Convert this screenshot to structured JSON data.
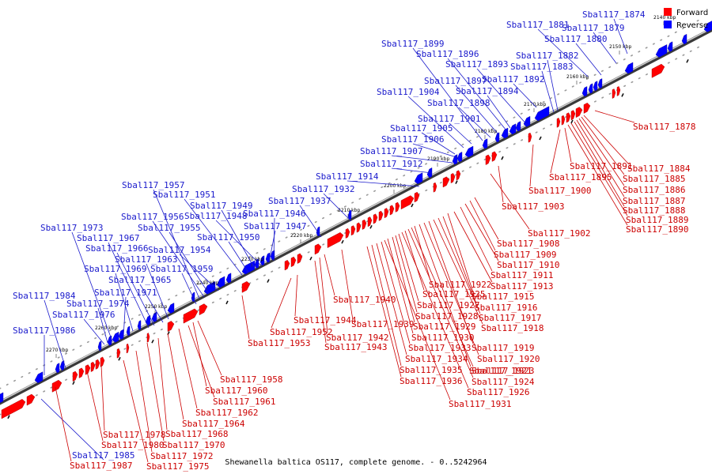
{
  "caption": "Shewanella baltica OS117, complete genome. - 0..5242964",
  "legend": {
    "forward": {
      "label": "Forward",
      "color": "#ff0000"
    },
    "reverse": {
      "label": "Reverse",
      "color": "#0000ff"
    }
  },
  "ticks": [
    "2140 kbp",
    "2150 kbp",
    "2160 kbp",
    "2170 kbp",
    "2180 kbp",
    "2190 kbp",
    "2200 kbp",
    "2210 kbp",
    "2220 kbp",
    "2230 kbp",
    "2240 kbp",
    "2250 kbp",
    "2260 kbp",
    "2270 kbp"
  ],
  "reverse_labels": [
    "Sbal117_1874",
    "Sbal117_1879",
    "Sbal117_1880",
    "Sbal117_1881",
    "Sbal117_1882",
    "Sbal117_1883",
    "Sbal117_1892",
    "Sbal117_1893",
    "Sbal117_1894",
    "Sbal117_1896",
    "Sbal117_1897",
    "Sbal117_1898",
    "Sbal117_1899",
    "Sbal117_1901",
    "Sbal117_1904",
    "Sbal117_1905",
    "Sbal117_1906",
    "Sbal117_1907",
    "Sbal117_1912",
    "Sbal117_1914",
    "Sbal117_1932",
    "Sbal117_1937",
    "Sbal117_1946",
    "Sbal117_1947",
    "Sbal117_1948",
    "Sbal117_1949",
    "Sbal117_1950",
    "Sbal117_1951",
    "Sbal117_1954",
    "Sbal117_1955",
    "Sbal117_1956",
    "Sbal117_1957",
    "Sbal117_1959",
    "Sbal117_1963",
    "Sbal117_1965",
    "Sbal117_1966",
    "Sbal117_1967",
    "Sbal117_1969",
    "Sbal117_1971",
    "Sbal117_1973",
    "Sbal117_1974",
    "Sbal117_1976",
    "Sbal117_1984",
    "Sbal117_1985",
    "Sbal117_1986"
  ],
  "forward_labels": [
    "Sbal117_1878",
    "Sbal117_1884",
    "Sbal117_1885",
    "Sbal117_1886",
    "Sbal117_1887",
    "Sbal117_1888",
    "Sbal117_1889",
    "Sbal117_1890",
    "Sbal117_1891",
    "Sbal117_1895",
    "Sbal117_1900",
    "Sbal117_1902",
    "Sbal117_1903",
    "Sbal117_1908",
    "Sbal117_1909",
    "Sbal117_1910",
    "Sbal117_1911",
    "Sbal117_1913",
    "Sbal117_1915",
    "Sbal117_1916",
    "Sbal117_1917",
    "Sbal117_1918",
    "Sbal117_1919",
    "Sbal117_1920",
    "Sbal117_1921",
    "Sbal117_1922",
    "Sbal117_1923",
    "Sbal117_1924",
    "Sbal117_1925",
    "Sbal117_1926",
    "Sbal117_1927",
    "Sbal117_1928",
    "Sbal117_1929",
    "Sbal117_1930",
    "Sbal117_1931",
    "Sbal117_1933",
    "Sbal117_1934",
    "Sbal117_1935",
    "Sbal117_1936",
    "Sbal117_1939",
    "Sbal117_1940",
    "Sbal117_1942",
    "Sbal117_1943",
    "Sbal117_1944",
    "Sbal117_1952",
    "Sbal117_1953",
    "Sbal117_1958",
    "Sbal117_1960",
    "Sbal117_1961",
    "Sbal117_1962",
    "Sbal117_1964",
    "Sbal117_1968",
    "Sbal117_1970",
    "Sbal117_1972",
    "Sbal117_1975",
    "Sbal117_1978",
    "Sbal117_1980",
    "Sbal117_1987"
  ]
}
